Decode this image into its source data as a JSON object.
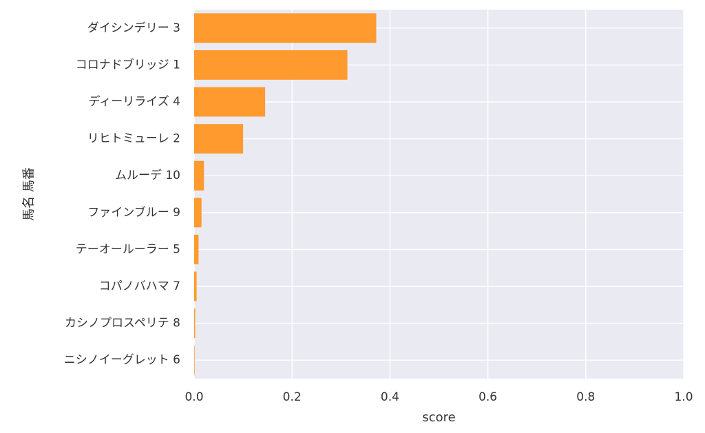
{
  "chart_data": {
    "type": "bar",
    "orientation": "horizontal",
    "categories": [
      "ダイシンデリー 3",
      "コロナドブリッジ 1",
      "ディーリライズ 4",
      "リヒトミューレ 2",
      "ムルーデ 10",
      "ファインブルー 9",
      "テーオールーラー 5",
      "コパノバハマ 7",
      "カシノプロスペリテ 8",
      "ニシノイーグレット 6"
    ],
    "values": [
      0.372,
      0.313,
      0.145,
      0.1,
      0.02,
      0.015,
      0.009,
      0.005,
      0.002,
      0.001
    ],
    "xlabel": "score",
    "ylabel": "馬名 馬番",
    "xlim": [
      0,
      1.0
    ],
    "xticks": [
      "0.0",
      "0.2",
      "0.4",
      "0.6",
      "0.8",
      "1.0"
    ],
    "grid": true,
    "bar_color": "#FF9A2E",
    "background_color": "#EAEAF2"
  }
}
